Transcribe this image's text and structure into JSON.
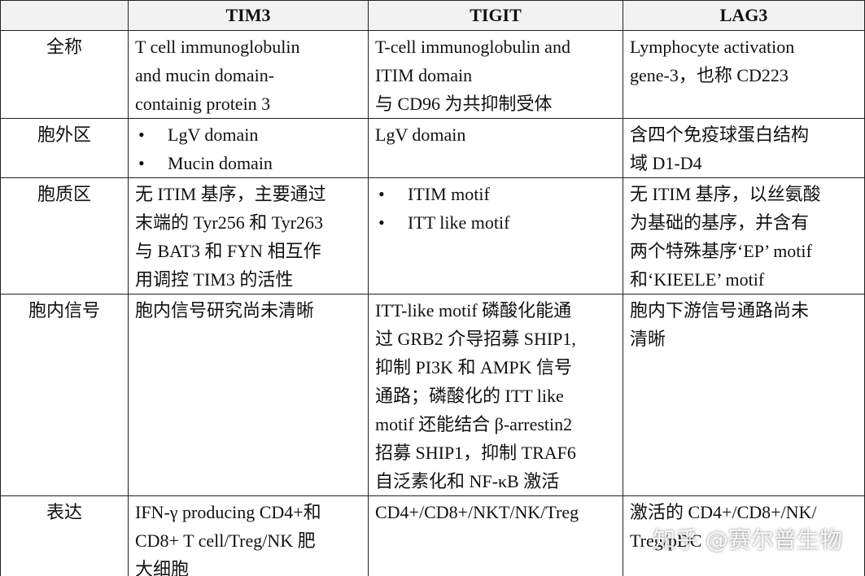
{
  "table": {
    "header": [
      "TIM3",
      "TIGIT",
      "LAG3"
    ],
    "rows": [
      {
        "label": "全称",
        "cells": [
          {
            "lines": [
              "T cell immunoglobulin",
              "and mucin domain-",
              "containig protein 3"
            ]
          },
          {
            "lines": [
              "T-cell immunoglobulin and",
              "ITIM domain",
              "与 CD96 为共抑制受体"
            ]
          },
          {
            "lines": [
              "Lymphocyte activation",
              "gene-3，也称 CD223"
            ]
          }
        ]
      },
      {
        "label": "胞外区",
        "cells": [
          {
            "bullets": [
              "LgV domain",
              "Mucin domain"
            ]
          },
          {
            "lines": [
              "LgV domain"
            ]
          },
          {
            "lines": [
              "含四个免疫球蛋白结构",
              "域 D1-D4"
            ]
          }
        ]
      },
      {
        "label": "胞质区",
        "cells": [
          {
            "lines": [
              "无 ITIM 基序，主要通过",
              "末端的 Tyr256 和 Tyr263",
              "与 BAT3 和 FYN 相互作",
              "用调控 TIM3 的活性"
            ]
          },
          {
            "bullets": [
              "ITIM motif",
              "ITT like motif"
            ]
          },
          {
            "lines": [
              "无 ITIM 基序，以丝氨酸",
              "为基础的基序，并含有",
              "两个特殊基序‘EP’ motif",
              "和‘KIEELE’ motif"
            ]
          }
        ]
      },
      {
        "label": "胞内信号",
        "cells": [
          {
            "lines": [
              "胞内信号研究尚未清晰"
            ]
          },
          {
            "lines": [
              "ITT-like motif 磷酸化能通",
              "过 GRB2 介导招募 SHIP1,",
              "抑制 PI3K 和 AMPK 信号",
              "通路；磷酸化的 ITT like",
              "motif 还能结合 β-arrestin2",
              "招募 SHIP1，抑制 TRAF6",
              "自泛素化和 NF-κB 激活"
            ]
          },
          {
            "lines": [
              "胞内下游信号通路尚未",
              "清晰"
            ]
          }
        ]
      },
      {
        "label": "表达",
        "cells": [
          {
            "lines": [
              "IFN-γ producing CD4+和",
              "CD8+ T cell/Treg/NK 肥",
              "大细胞"
            ]
          },
          {
            "lines": [
              "CD4+/CD8+/NKT/NK/Treg"
            ]
          },
          {
            "lines": [
              "激活的 CD4+/CD8+/NK/",
              "Treg/pDC"
            ]
          }
        ]
      }
    ]
  },
  "watermark": "知乎 @赛尔普生物"
}
